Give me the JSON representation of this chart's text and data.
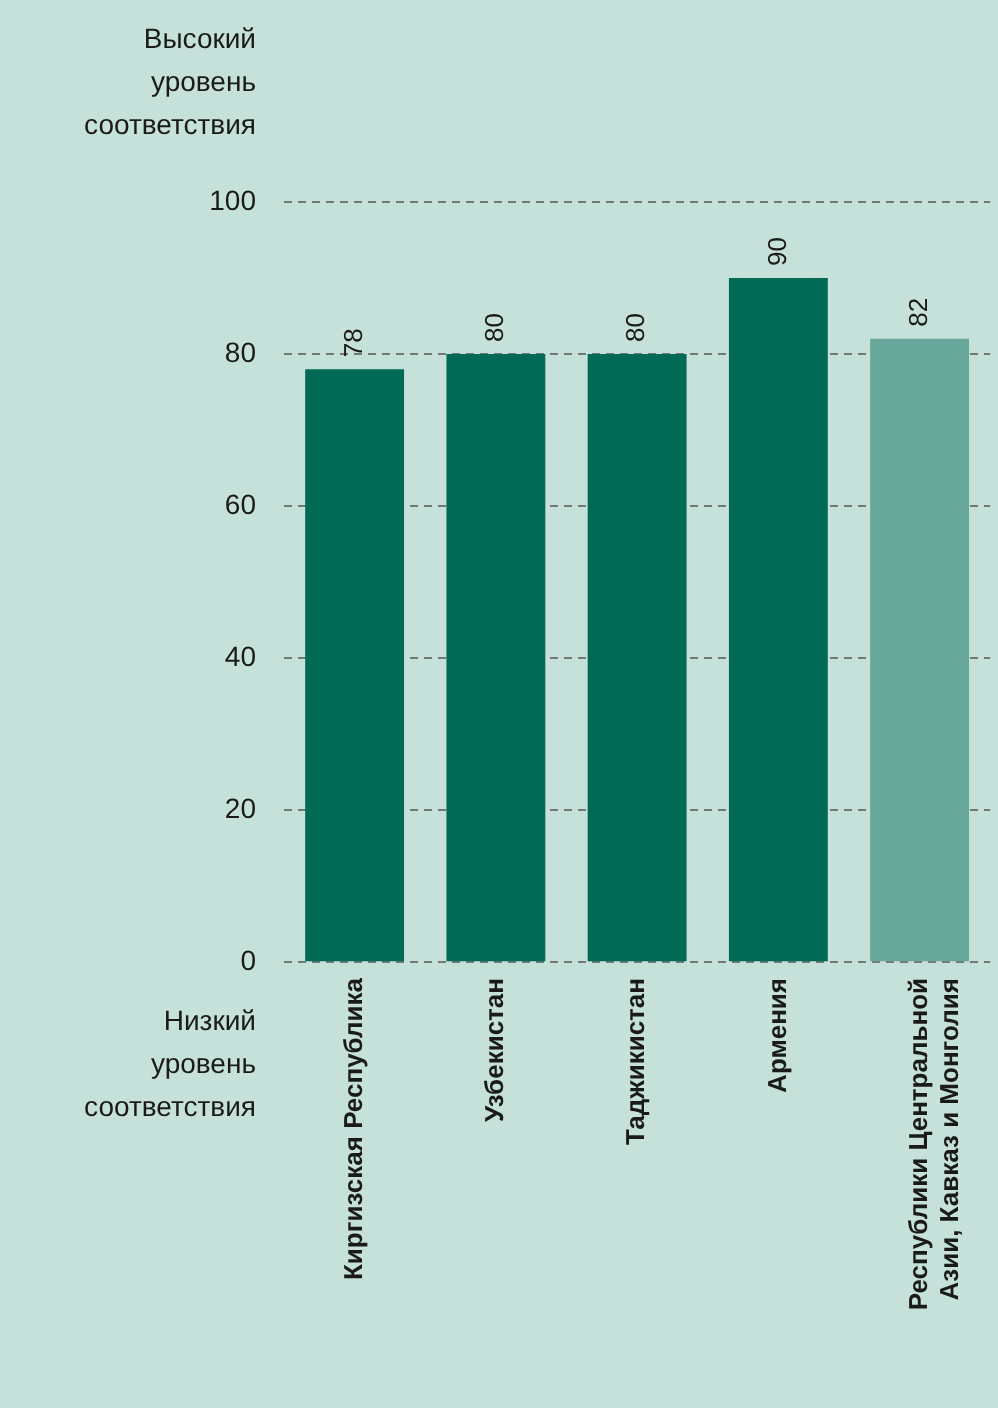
{
  "chart_data": {
    "type": "bar",
    "categories": [
      "Киргизская Республика",
      "Узбекистан",
      "Таджикистан",
      "Армения",
      "Республики Центральной Азии, Кавказ и Монголия"
    ],
    "values": [
      78,
      80,
      80,
      90,
      82
    ],
    "colors": [
      "#006a55",
      "#006a55",
      "#006a55",
      "#006a55",
      "#68a89a"
    ],
    "ylim": [
      0,
      100
    ],
    "yticks": [
      0,
      20,
      40,
      60,
      80,
      100
    ],
    "grid": "y",
    "legend": false,
    "data_labels": true,
    "annotations": [
      "Высокий уровень соответствия",
      "Низкий уровень соответствия"
    ]
  }
}
